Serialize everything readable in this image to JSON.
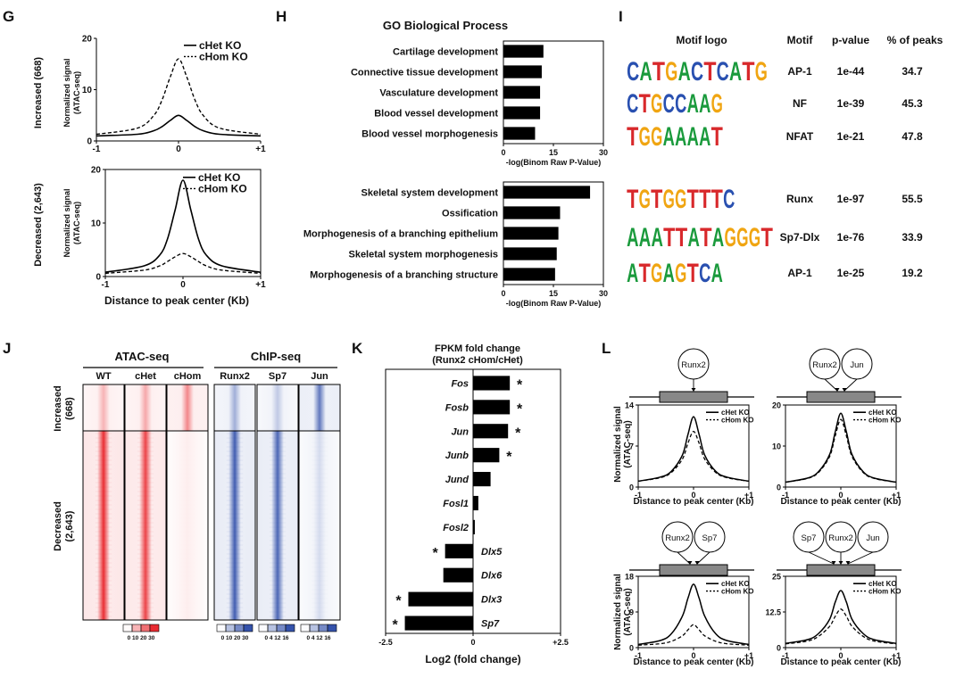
{
  "panel_letters": {
    "G": "G",
    "H": "H",
    "I": "I",
    "J": "J",
    "K": "K",
    "L": "L"
  },
  "colors": {
    "red": "#e8242a",
    "blue": "#2d4ca8",
    "black": "#000000"
  },
  "panel_G": {
    "xlabel": "Distance to peak center (Kb)",
    "legend": [
      "cHet KO",
      "cHom KO"
    ],
    "top": {
      "ylabel_row": "Increased (668)",
      "ylabel_axis": "Normalized signal (ATAC-seq)",
      "yticks": [
        "0",
        "10",
        "20"
      ],
      "xticks": [
        "-1",
        "0",
        "+1"
      ]
    },
    "bottom": {
      "ylabel_row": "Decreased (2,643)",
      "ylabel_axis": "Normalized signal (ATAC-seq)",
      "yticks": [
        "0",
        "10",
        "20"
      ],
      "xticks": [
        "-1",
        "0",
        "+1"
      ]
    }
  },
  "panel_H": {
    "title": "GO Biological Process",
    "xlabel": "-log(Binom Raw P-Value)",
    "xticks": [
      "0",
      "15",
      "30"
    ],
    "top_terms": [
      "Cartilage development",
      "Connective tissue development",
      "Vasculature development",
      "Blood vessel development",
      "Blood vessel morphogenesis"
    ],
    "bottom_terms": [
      "Skeletal system development",
      "Ossification",
      "Morphogenesis of a branching epithelium",
      "Skeletal system morphogenesis",
      "Morphogenesis of a branching structure"
    ]
  },
  "panel_I": {
    "headers": {
      "logo": "Motif logo",
      "motif": "Motif",
      "pvalue": "p-value",
      "peaks": "% of peaks"
    },
    "rows": [
      {
        "logo": "CATGACTCATG",
        "motif": "AP-1",
        "pvalue": "1e-44",
        "peaks": "34.7"
      },
      {
        "logo": "CTGCCAAG",
        "motif": "NF",
        "pvalue": "1e-39",
        "peaks": "45.3"
      },
      {
        "logo": "TGGAAAAT",
        "motif": "NFAT",
        "pvalue": "1e-21",
        "peaks": "47.8"
      },
      {
        "logo": "TGTGGTTTC",
        "motif": "Runx",
        "pvalue": "1e-97",
        "peaks": "55.5"
      },
      {
        "logo": "AAATTATAGGGT",
        "motif": "Sp7-Dlx",
        "pvalue": "1e-76",
        "peaks": "33.9"
      },
      {
        "logo": "ATGAGTCA",
        "motif": "AP-1",
        "pvalue": "1e-25",
        "peaks": "19.2"
      }
    ]
  },
  "panel_J": {
    "atac_title": "ATAC-seq",
    "chip_title": "ChIP-seq",
    "atac_cols": [
      "WT",
      "cHet",
      "cHom"
    ],
    "chip_cols": [
      "Runx2",
      "Sp7",
      "Jun"
    ],
    "row_increased": "Increased (668)",
    "row_decreased": "Decreased (2,643)",
    "scale_atac": "0 10 20 30",
    "scale_runx2": "0 10 20 30",
    "scale_sp7": "0 4 12 16",
    "scale_jun": "0 4 12 16"
  },
  "panel_K": {
    "title_line1": "FPKM fold change",
    "title_line2": "(Runx2 cHom/cHet)",
    "xlabel": "Log2 (fold change)",
    "xticks": [
      "-2.5",
      "0",
      "+2.5"
    ]
  },
  "panel_L": {
    "xlabel": "Distance to peak center (Kb)",
    "ylabel": "Normalized signal (ATAC-seq)",
    "legend": [
      "cHet KO",
      "cHom KO"
    ],
    "plots": [
      {
        "factors": [
          "Runx2"
        ],
        "yticks": [
          "0",
          "7",
          "14"
        ],
        "xticks": [
          "-1",
          "0",
          "+1"
        ]
      },
      {
        "factors": [
          "Runx2",
          "Jun"
        ],
        "yticks": [
          "0",
          "10",
          "20"
        ],
        "xticks": [
          "-1",
          "0",
          "+1"
        ]
      },
      {
        "factors": [
          "Runx2",
          "Sp7"
        ],
        "yticks": [
          "0",
          "9",
          "18"
        ],
        "xticks": [
          "-1",
          "0",
          "+1"
        ]
      },
      {
        "factors": [
          "Sp7",
          "Runx2",
          "Jun"
        ],
        "yticks": [
          "0",
          "12.5",
          "25"
        ],
        "xticks": [
          "-1",
          "0",
          "+1"
        ]
      }
    ]
  },
  "chart_data": [
    {
      "type": "line",
      "panel": "G-top",
      "ylim": [
        0,
        20
      ],
      "xlim": [
        -1,
        1
      ],
      "x": [
        -1,
        -0.5,
        -0.3,
        -0.2,
        -0.1,
        0,
        0.1,
        0.2,
        0.3,
        0.5,
        1
      ],
      "series": [
        {
          "name": "cHet KO",
          "values": [
            1,
            1.3,
            2,
            2.8,
            4,
            5,
            4,
            2.8,
            2,
            1.3,
            1
          ]
        },
        {
          "name": "cHom KO",
          "values": [
            1.3,
            2.5,
            5,
            8,
            12.5,
            16,
            12.5,
            8,
            5,
            2.5,
            1.3
          ]
        }
      ]
    },
    {
      "type": "line",
      "panel": "G-bottom",
      "ylim": [
        0,
        20
      ],
      "xlim": [
        -1,
        1
      ],
      "x": [
        -1,
        -0.5,
        -0.3,
        -0.2,
        -0.1,
        0,
        0.1,
        0.2,
        0.3,
        0.5,
        1
      ],
      "series": [
        {
          "name": "cHet KO",
          "values": [
            0.8,
            2,
            4,
            7,
            12.5,
            18,
            12.5,
            7,
            4,
            2,
            0.8
          ]
        },
        {
          "name": "cHom KO",
          "values": [
            0.6,
            1.2,
            2,
            2.8,
            3.7,
            4.3,
            3.7,
            2.8,
            2,
            1.2,
            0.6
          ]
        }
      ]
    },
    {
      "type": "bar",
      "panel": "H-top",
      "orientation": "horizontal",
      "xlim": [
        0,
        30
      ],
      "categories": [
        "Cartilage development",
        "Connective tissue development",
        "Vasculature development",
        "Blood vessel development",
        "Blood vessel morphogenesis"
      ],
      "values": [
        12,
        11.5,
        11,
        11,
        9.5
      ]
    },
    {
      "type": "bar",
      "panel": "H-bottom",
      "orientation": "horizontal",
      "xlim": [
        0,
        30
      ],
      "categories": [
        "Skeletal system development",
        "Ossification",
        "Morphogenesis of a branching epithelium",
        "Skeletal system morphogenesis",
        "Morphogenesis of a branching structure"
      ],
      "values": [
        26,
        17,
        16.5,
        16,
        15.5
      ]
    },
    {
      "type": "bar",
      "panel": "K",
      "orientation": "horizontal",
      "xlim": [
        -2.5,
        2.5
      ],
      "categories": [
        "Fos",
        "Fosb",
        "Jun",
        "Junb",
        "Jund",
        "Fosl1",
        "Fosl2",
        "Dlx5",
        "Dlx6",
        "Dlx3",
        "Sp7"
      ],
      "values": [
        1.05,
        1.05,
        1.0,
        0.75,
        0.5,
        0.15,
        0.05,
        -0.8,
        -0.85,
        -1.85,
        -1.95
      ],
      "significant": [
        true,
        true,
        true,
        true,
        false,
        false,
        false,
        true,
        false,
        true,
        true
      ]
    },
    {
      "type": "line",
      "panel": "L1",
      "ylim": [
        0,
        14
      ],
      "xlim": [
        -1,
        1
      ],
      "x": [
        -1,
        -0.6,
        -0.4,
        -0.2,
        -0.1,
        0,
        0.1,
        0.2,
        0.4,
        0.6,
        1
      ],
      "series": [
        {
          "name": "cHet KO",
          "values": [
            1,
            1.7,
            2.7,
            5.5,
            9,
            12,
            9,
            5.5,
            2.7,
            1.7,
            1
          ]
        },
        {
          "name": "cHom KO",
          "values": [
            1,
            1.6,
            2.5,
            4.8,
            7.5,
            9.5,
            7.5,
            4.8,
            2.5,
            1.6,
            1
          ]
        }
      ]
    },
    {
      "type": "line",
      "panel": "L2",
      "ylim": [
        0,
        20
      ],
      "xlim": [
        -1,
        1
      ],
      "x": [
        -1,
        -0.6,
        -0.4,
        -0.2,
        -0.1,
        0,
        0.1,
        0.2,
        0.4,
        0.6,
        1
      ],
      "series": [
        {
          "name": "cHet KO",
          "values": [
            1.2,
            2.2,
            3.8,
            8,
            13.5,
            18,
            13.5,
            8,
            3.8,
            2.2,
            1.2
          ]
        },
        {
          "name": "cHom KO",
          "values": [
            1.2,
            2.1,
            3.6,
            7.5,
            12.5,
            16.5,
            12.5,
            7.5,
            3.6,
            2.1,
            1.2
          ]
        }
      ]
    },
    {
      "type": "line",
      "panel": "L3",
      "ylim": [
        0,
        18
      ],
      "xlim": [
        -1,
        1
      ],
      "x": [
        -1,
        -0.6,
        -0.4,
        -0.2,
        -0.1,
        0,
        0.1,
        0.2,
        0.4,
        0.6,
        1
      ],
      "series": [
        {
          "name": "cHet KO",
          "values": [
            0.8,
            1.8,
            3.5,
            8,
            12.5,
            16,
            12.5,
            8,
            3.5,
            1.8,
            0.8
          ]
        },
        {
          "name": "cHom KO",
          "values": [
            0.6,
            1,
            1.6,
            3,
            4.5,
            5.8,
            4.5,
            3,
            1.6,
            1,
            0.6
          ]
        }
      ]
    },
    {
      "type": "line",
      "panel": "L4",
      "ylim": [
        0,
        25
      ],
      "xlim": [
        -1,
        1
      ],
      "x": [
        -1,
        -0.6,
        -0.4,
        -0.2,
        -0.1,
        0,
        0.1,
        0.2,
        0.4,
        0.6,
        1
      ],
      "series": [
        {
          "name": "cHet KO",
          "values": [
            1.5,
            2.8,
            5,
            10,
            16,
            20,
            16,
            10,
            5,
            2.8,
            1.5
          ]
        },
        {
          "name": "cHom KO",
          "values": [
            1.3,
            2.3,
            4,
            7.5,
            11,
            13.5,
            11,
            7.5,
            4,
            2.3,
            1.3
          ]
        }
      ]
    }
  ]
}
